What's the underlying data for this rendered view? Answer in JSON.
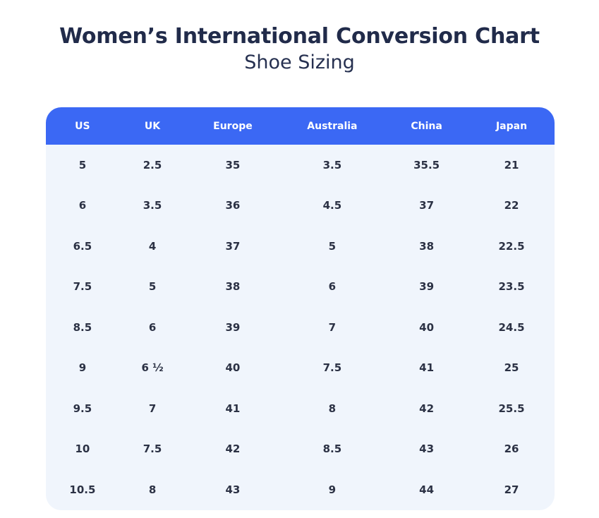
{
  "page": {
    "title": "Women’s International Conversion Chart",
    "subtitle": "Shoe Sizing"
  },
  "colors": {
    "header_bg": "#3b68f4",
    "header_text": "#ffffff",
    "body_bg": "#f0f5fc",
    "cell_text": "#2b3144",
    "title_text": "#212b4a",
    "page_bg": "#ffffff"
  },
  "chart_data": {
    "type": "table",
    "title": "Women’s International Conversion Chart",
    "subtitle": "Shoe Sizing",
    "columns": [
      "US",
      "UK",
      "Europe",
      "Australia",
      "China",
      "Japan"
    ],
    "rows": [
      [
        "5",
        "2.5",
        "35",
        "3.5",
        "35.5",
        "21"
      ],
      [
        "6",
        "3.5",
        "36",
        "4.5",
        "37",
        "22"
      ],
      [
        "6.5",
        "4",
        "37",
        "5",
        "38",
        "22.5"
      ],
      [
        "7.5",
        "5",
        "38",
        "6",
        "39",
        "23.5"
      ],
      [
        "8.5",
        "6",
        "39",
        "7",
        "40",
        "24.5"
      ],
      [
        "9",
        "6 ½",
        "40",
        "7.5",
        "41",
        "25"
      ],
      [
        "9.5",
        "7",
        "41",
        "8",
        "42",
        "25.5"
      ],
      [
        "10",
        "7.5",
        "42",
        "8.5",
        "43",
        "26"
      ],
      [
        "10.5",
        "8",
        "43",
        "9",
        "44",
        "27"
      ]
    ]
  }
}
